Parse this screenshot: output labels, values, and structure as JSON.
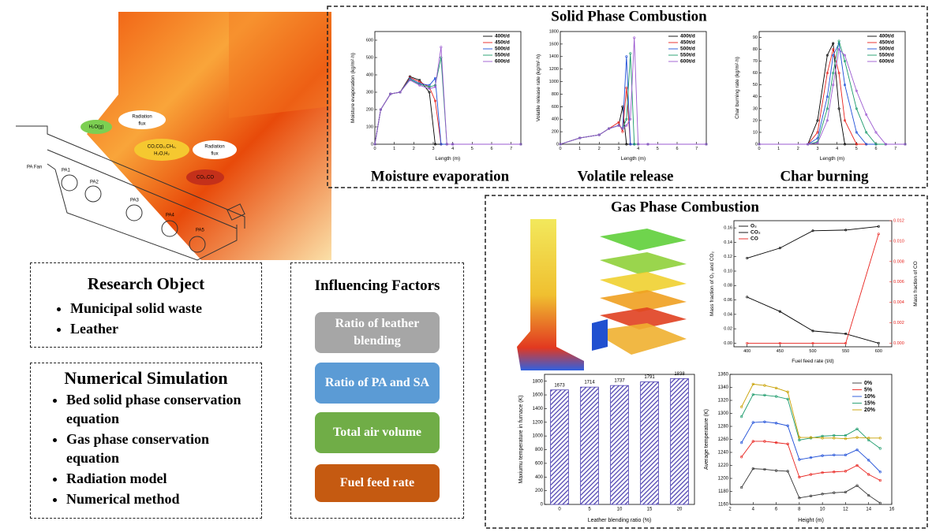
{
  "furnace": {
    "labels": [
      "PA Fan",
      "PA1",
      "PA2",
      "PA3",
      "PA4",
      "PA5"
    ],
    "radiation_1": [
      "Radiation",
      "flux"
    ],
    "radiation_2": [
      "Radiation",
      "flux"
    ],
    "gas_1": "H₂O(g)",
    "gas_2": [
      "CO,CO₂,CH₄,",
      "H₂O,H₂"
    ],
    "gas_3": "CO₂,CO"
  },
  "research_object": {
    "title": "Research Object",
    "items": [
      "Municipal solid waste",
      "Leather"
    ]
  },
  "numerical_simulation": {
    "title": "Numerical Simulation",
    "items": [
      "Bed solid phase conservation equation",
      "Gas phase conservation equation",
      "Radiation model",
      "Numerical method"
    ]
  },
  "influencing_factors": {
    "title": "Influencing Factors",
    "items": [
      "Ratio of leather blending",
      "Ratio of PA and SA",
      "Total air volume",
      "Fuel feed rate"
    ]
  },
  "solid_phase": {
    "title": "Solid Phase Combustion",
    "charts": [
      {
        "type": "line",
        "caption": "Moisture evaporation",
        "xlabel": "Length (m)",
        "ylabel": "Moisture evaporation (kg/m²·h)",
        "xlim": [
          0,
          7.5
        ],
        "xticks": [
          0,
          1,
          2,
          3,
          4,
          5,
          6,
          7
        ],
        "ylim": [
          0,
          650
        ],
        "yticks": [
          0,
          100,
          200,
          300,
          400,
          500,
          600
        ],
        "x": [
          0,
          0.3,
          0.8,
          1.3,
          1.8,
          2.3,
          2.8,
          3.1,
          3.4,
          3.7,
          4,
          7.5
        ],
        "series": [
          {
            "name": "400t/d",
            "color": "#000000",
            "values": [
              0,
              200,
              290,
              300,
              390,
              370,
              300,
              0,
              0,
              0,
              0,
              0
            ]
          },
          {
            "name": "450t/d",
            "color": "#e8211c",
            "values": [
              0,
              200,
              290,
              300,
              385,
              360,
              330,
              250,
              0,
              0,
              0,
              0
            ]
          },
          {
            "name": "500t/d",
            "color": "#1f4fd8",
            "values": [
              0,
              200,
              290,
              300,
              380,
              350,
              340,
              380,
              0,
              0,
              0,
              0
            ]
          },
          {
            "name": "550t/d",
            "color": "#1a9a6a",
            "values": [
              0,
              200,
              290,
              300,
              375,
              345,
              330,
              340,
              500,
              0,
              0,
              0
            ]
          },
          {
            "name": "600t/d",
            "color": "#9b59d0",
            "values": [
              0,
              200,
              290,
              300,
              370,
              340,
              320,
              330,
              560,
              0,
              0,
              0
            ]
          }
        ]
      },
      {
        "type": "line",
        "caption": "Volatile release",
        "xlabel": "Length (m)",
        "ylabel": "Volatile release rate (kg/m²·h)",
        "xlim": [
          0,
          7.5
        ],
        "xticks": [
          0,
          1,
          2,
          3,
          4,
          5,
          6,
          7
        ],
        "ylim": [
          0,
          1800
        ],
        "yticks": [
          0,
          200,
          400,
          600,
          800,
          1000,
          1200,
          1400,
          1600,
          1800
        ],
        "x": [
          0,
          1,
          2,
          2.5,
          3,
          3.2,
          3.4,
          3.6,
          3.8,
          4,
          4.5,
          7.5
        ],
        "series": [
          {
            "name": "400t/d",
            "color": "#000000",
            "values": [
              0,
              100,
              150,
              250,
              300,
              600,
              0,
              0,
              0,
              0,
              0,
              0
            ]
          },
          {
            "name": "450t/d",
            "color": "#e8211c",
            "values": [
              0,
              100,
              150,
              250,
              350,
              200,
              900,
              0,
              0,
              0,
              0,
              0
            ]
          },
          {
            "name": "500t/d",
            "color": "#1f4fd8",
            "values": [
              0,
              100,
              150,
              250,
              300,
              250,
              1400,
              0,
              0,
              0,
              0,
              0
            ]
          },
          {
            "name": "550t/d",
            "color": "#1a9a6a",
            "values": [
              0,
              100,
              150,
              250,
              300,
              250,
              400,
              1450,
              0,
              0,
              0,
              0
            ]
          },
          {
            "name": "600t/d",
            "color": "#9b59d0",
            "values": [
              0,
              100,
              150,
              250,
              300,
              250,
              300,
              400,
              1700,
              0,
              0,
              0
            ]
          }
        ]
      },
      {
        "type": "line",
        "caption": "Char burning",
        "xlabel": "Length (m)",
        "ylabel": "Char burning rate (kg/m²·h)",
        "xlim": [
          0,
          7.5
        ],
        "xticks": [
          0,
          1,
          2,
          3,
          4,
          5,
          6,
          7
        ],
        "ylim": [
          0,
          95
        ],
        "yticks": [
          0,
          10,
          20,
          30,
          40,
          50,
          60,
          70,
          80,
          90
        ],
        "x": [
          0,
          2.5,
          3,
          3.5,
          3.8,
          4.1,
          4.4,
          5,
          5.5,
          6,
          6.5,
          7.5
        ],
        "series": [
          {
            "name": "400t/d",
            "color": "#000000",
            "values": [
              0,
              0,
              20,
              75,
              85,
              30,
              0,
              0,
              0,
              0,
              0,
              0
            ]
          },
          {
            "name": "450t/d",
            "color": "#e8211c",
            "values": [
              0,
              0,
              10,
              60,
              80,
              60,
              20,
              0,
              0,
              0,
              0,
              0
            ]
          },
          {
            "name": "500t/d",
            "color": "#1f4fd8",
            "values": [
              0,
              0,
              5,
              40,
              75,
              85,
              50,
              10,
              0,
              0,
              0,
              0
            ]
          },
          {
            "name": "550t/d",
            "color": "#1a9a6a",
            "values": [
              0,
              0,
              2,
              30,
              60,
              87,
              70,
              30,
              10,
              0,
              0,
              0
            ]
          },
          {
            "name": "600t/d",
            "color": "#9b59d0",
            "values": [
              0,
              0,
              1,
              20,
              50,
              80,
              75,
              45,
              25,
              10,
              0,
              0
            ]
          }
        ]
      }
    ]
  },
  "gas_phase": {
    "title": "Gas Phase Combustion",
    "mass_fraction": {
      "type": "line",
      "xlabel": "Fuel feed rate (t/d)",
      "ylabel": "Mass fraction of O₂ and CO₂",
      "y2label": "Mass fraction of CO",
      "x": [
        400,
        450,
        500,
        550,
        600
      ],
      "xlim": [
        380,
        620
      ],
      "xticks": [
        400,
        450,
        500,
        550,
        600
      ],
      "ylim": [
        -0.005,
        0.17
      ],
      "yticks": [
        {
          "value": 0,
          "label": "0.00"
        },
        {
          "value": 0.02,
          "label": "0.02"
        },
        {
          "value": 0.04,
          "label": "0.04"
        },
        {
          "value": 0.06,
          "label": "0.06"
        },
        {
          "value": 0.08,
          "label": "0.08"
        },
        {
          "value": 0.1,
          "label": "0.10"
        },
        {
          "value": 0.12,
          "label": "0.12"
        },
        {
          "value": 0.14,
          "label": "0.14"
        },
        {
          "value": 0.16,
          "label": "0.16"
        }
      ],
      "y2lim": [
        -0.00035,
        0.012
      ],
      "y2ticks": [
        {
          "value": 0,
          "label": "0.000"
        },
        {
          "value": 0.002,
          "label": "0.002"
        },
        {
          "value": 0.004,
          "label": "0.004"
        },
        {
          "value": 0.006,
          "label": "0.006"
        },
        {
          "value": 0.008,
          "label": "0.008"
        },
        {
          "value": 0.01,
          "label": "0.010"
        },
        {
          "value": 0.012,
          "label": "0.012"
        }
      ],
      "series": [
        {
          "name": "O₂",
          "color": "#000000",
          "values": [
            0.064,
            0.044,
            0.017,
            0.013,
            0.0
          ]
        },
        {
          "name": "CO₂",
          "color": "#000000",
          "values": [
            0.118,
            0.132,
            0.156,
            0.157,
            0.162
          ]
        },
        {
          "name": "CO",
          "color": "#e8211c",
          "axis": "y2",
          "values": [
            0,
            0,
            0,
            0,
            0.0107
          ]
        }
      ]
    },
    "max_temperature": {
      "type": "bar",
      "xlabel": "Leather blending ratio (%)",
      "ylabel": "Maxiumu temperature in furnace (K)",
      "categories": [
        "0",
        "5",
        "10",
        "15",
        "20"
      ],
      "values": [
        1673,
        1714,
        1737,
        1791,
        1838
      ],
      "color": "#4b3fb0",
      "ylim": [
        0,
        1900
      ],
      "yticks": [
        0,
        200,
        400,
        600,
        800,
        1000,
        1200,
        1400,
        1600,
        1800
      ]
    },
    "avg_temperature": {
      "type": "line",
      "xlabel": "Height (m)",
      "ylabel": "Average temperature (K)",
      "x": [
        3,
        4,
        5,
        6,
        7,
        8,
        9,
        10,
        11,
        12,
        13,
        14,
        15
      ],
      "xlim": [
        2,
        16
      ],
      "xticks": [
        2,
        4,
        6,
        8,
        10,
        12,
        14,
        16
      ],
      "ylim": [
        1160,
        1360
      ],
      "yticks": [
        1160,
        1180,
        1200,
        1220,
        1240,
        1260,
        1280,
        1300,
        1320,
        1340,
        1360
      ],
      "series": [
        {
          "name": "0%",
          "color": "#333333",
          "values": [
            1186,
            1215,
            1214,
            1212,
            1211,
            1170,
            1173,
            1176,
            1178,
            1179,
            1189,
            1174,
            1162
          ]
        },
        {
          "name": "5%",
          "color": "#e8211c",
          "values": [
            1233,
            1257,
            1257,
            1255,
            1253,
            1202,
            1206,
            1209,
            1210,
            1211,
            1220,
            1206,
            1197
          ]
        },
        {
          "name": "10%",
          "color": "#1f4fd8",
          "values": [
            1255,
            1286,
            1287,
            1285,
            1281,
            1229,
            1232,
            1235,
            1236,
            1236,
            1244,
            1228,
            1210
          ]
        },
        {
          "name": "15%",
          "color": "#1a9a6a",
          "values": [
            1295,
            1329,
            1328,
            1326,
            1322,
            1259,
            1262,
            1265,
            1266,
            1266,
            1276,
            1259,
            1246
          ]
        },
        {
          "name": "20%",
          "color": "#c8a000",
          "values": [
            1310,
            1345,
            1343,
            1339,
            1333,
            1263,
            1263,
            1262,
            1262,
            1261,
            1263,
            1262,
            1262
          ]
        }
      ]
    }
  }
}
